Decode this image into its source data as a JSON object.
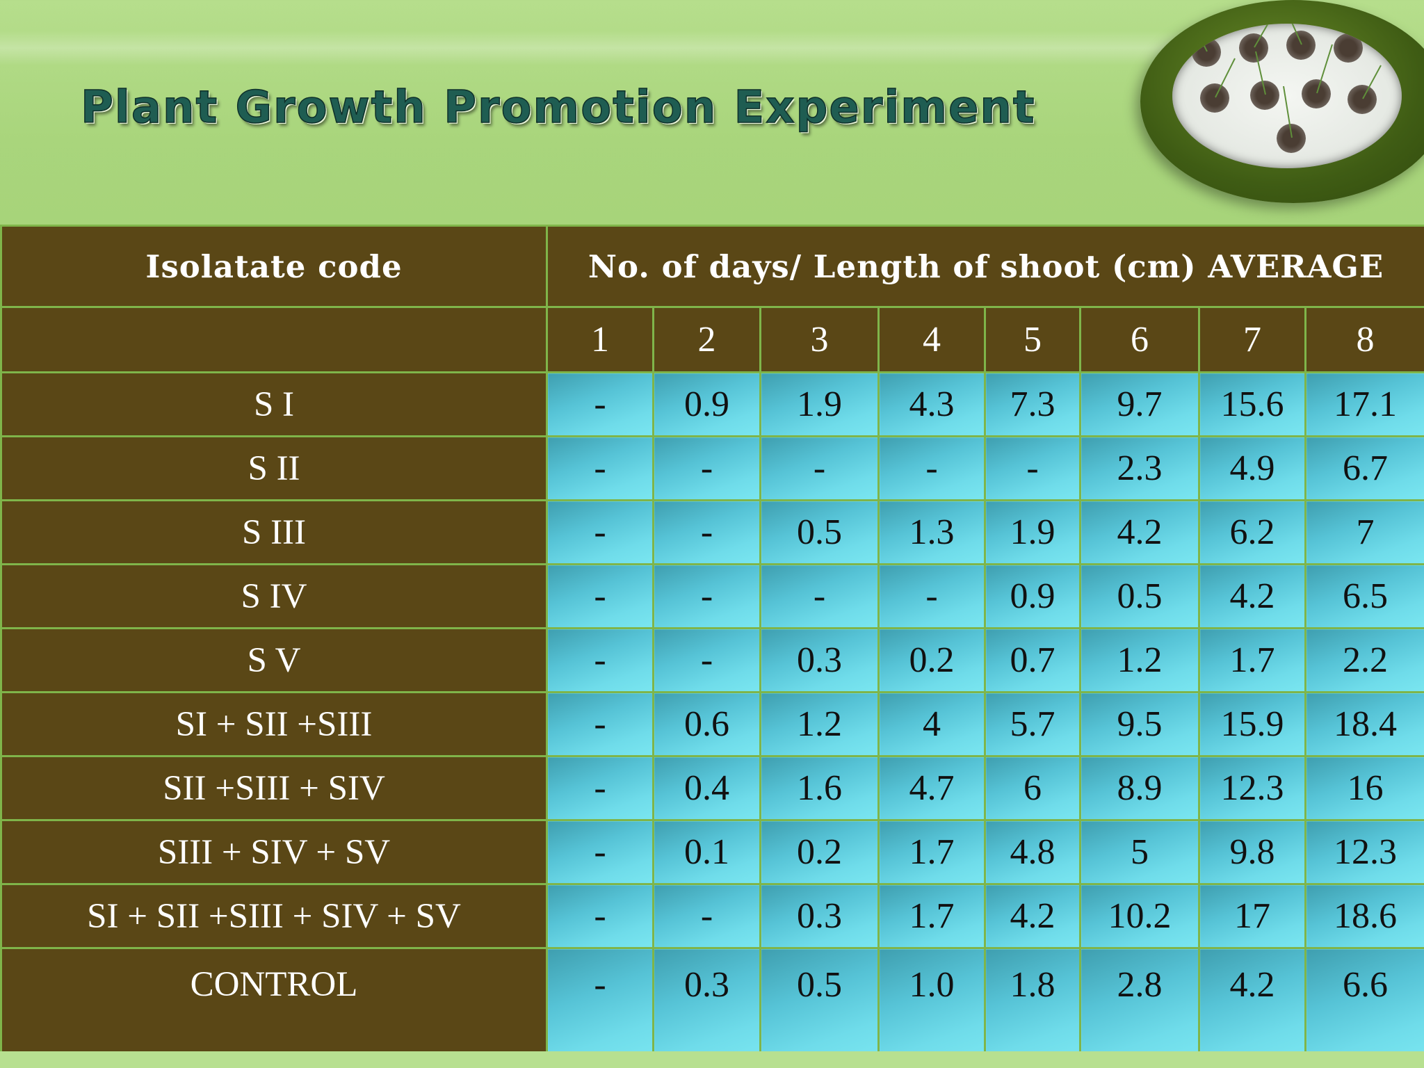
{
  "slide": {
    "title": "Plant Growth Promotion Experiment"
  },
  "table": {
    "header_code": "Isolatate code",
    "header_days": "No. of days/ Length of shoot (cm) AVERAGE",
    "days": [
      "1",
      "2",
      "3",
      "4",
      "5",
      "6",
      "7",
      "8"
    ],
    "rows": [
      {
        "code": "S I",
        "values": [
          "-",
          "0.9",
          "1.9",
          "4.3",
          "7.3",
          "9.7",
          "15.6",
          "17.1"
        ]
      },
      {
        "code": "S II",
        "values": [
          "-",
          "-",
          "-",
          "-",
          "-",
          "2.3",
          "4.9",
          "6.7"
        ]
      },
      {
        "code": "S III",
        "values": [
          "-",
          "-",
          "0.5",
          "1.3",
          "1.9",
          "4.2",
          "6.2",
          "7"
        ]
      },
      {
        "code": "S IV",
        "values": [
          "-",
          "-",
          "-",
          "-",
          "0.9",
          "0.5",
          "4.2",
          "6.5"
        ]
      },
      {
        "code": "S V",
        "values": [
          "-",
          "-",
          "0.3",
          "0.2",
          "0.7",
          "1.2",
          "1.7",
          "2.2"
        ]
      },
      {
        "code": "SI + SII +SIII",
        "values": [
          "-",
          "0.6",
          "1.2",
          "4",
          "5.7",
          "9.5",
          "15.9",
          "18.4"
        ]
      },
      {
        "code": "SII +SIII + SIV",
        "values": [
          "-",
          "0.4",
          "1.6",
          "4.7",
          "6",
          "8.9",
          "12.3",
          "16"
        ]
      },
      {
        "code": "SIII + SIV + SV",
        "values": [
          "-",
          "0.1",
          "0.2",
          "1.7",
          "4.8",
          "5",
          "9.8",
          "12.3"
        ]
      },
      {
        "code": "SI + SII +SIII + SIV + SV",
        "values": [
          "-",
          "-",
          "0.3",
          "1.7",
          "4.2",
          "10.2",
          "17",
          "18.6"
        ]
      },
      {
        "code": "CONTROL",
        "values": [
          "-",
          "0.3",
          "0.5",
          "1.0",
          "1.8",
          "2.8",
          "4.2",
          "6.6"
        ]
      }
    ]
  },
  "colors": {
    "background": "#a9d57c",
    "header_fill": "#5a4716",
    "cell_fill": "#56c3d6",
    "grid_line": "#7fb54a",
    "title_text": "#1f5d52"
  },
  "icons": [
    "plant-pots-photo"
  ]
}
